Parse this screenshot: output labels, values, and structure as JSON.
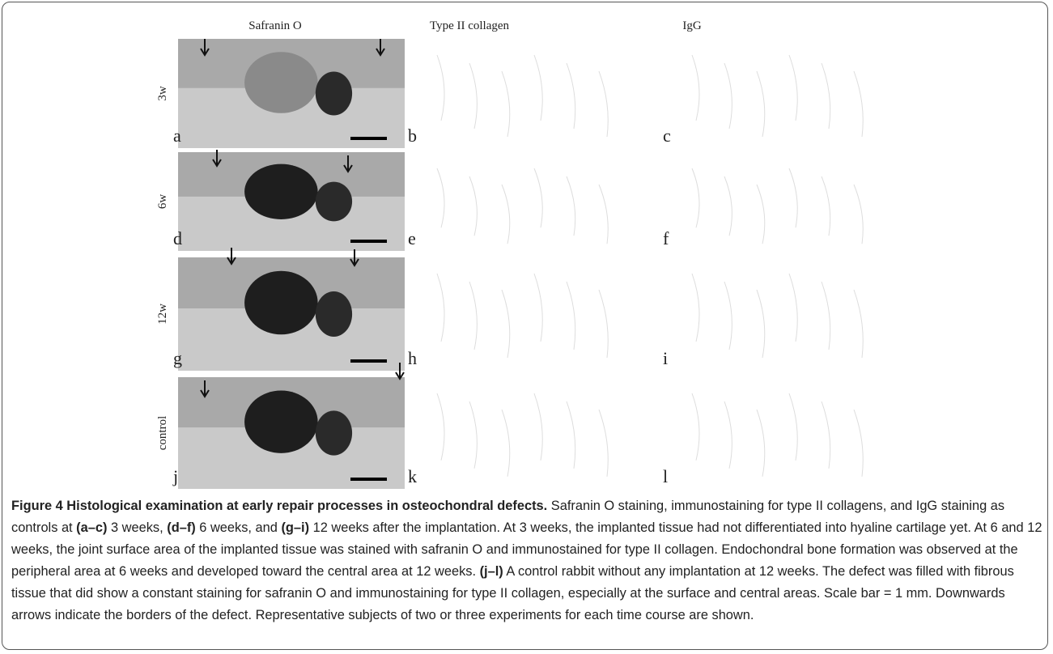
{
  "columns": [
    "Safranin O",
    "Type II collagen",
    "IgG"
  ],
  "rows": [
    {
      "label": "3w",
      "panels": [
        "a",
        "b",
        "c"
      ]
    },
    {
      "label": "6w",
      "panels": [
        "d",
        "e",
        "f"
      ]
    },
    {
      "label": "12w",
      "panels": [
        "g",
        "h",
        "i"
      ]
    },
    {
      "label": "control",
      "panels": [
        "j",
        "k",
        "l"
      ]
    }
  ],
  "caption": {
    "title": "Figure 4 Histological examination at early repair processes in osteochondral defects.",
    "body": [
      " Safranin O staining, immunostaining for type II collagens, and IgG staining as controls at ",
      "(a–c)",
      " 3 weeks, ",
      "(d–f)",
      " 6 weeks, and ",
      "(g–i)",
      " 12 weeks after the implantation. At 3 weeks, the implanted tissue had not differentiated into hyaline cartilage yet. At 6 and 12 weeks, the joint surface area of the implanted tissue was stained with safranin O and immunostained for type II collagen. Endochondral bone formation was observed at the peripheral area at 6 weeks and developed toward the central area at 12 weeks. ",
      "(j–l)",
      " A control rabbit without any implantation at 12 weeks. The defect was filled with fibrous tissue that did show a constant staining for safranin O and immunostaining for type II collagen, especially at the surface and central areas. Scale bar = 1 mm. Downwards arrows indicate the borders of the defect. Representative subjects of two or three experiments for each time course are shown."
    ]
  }
}
